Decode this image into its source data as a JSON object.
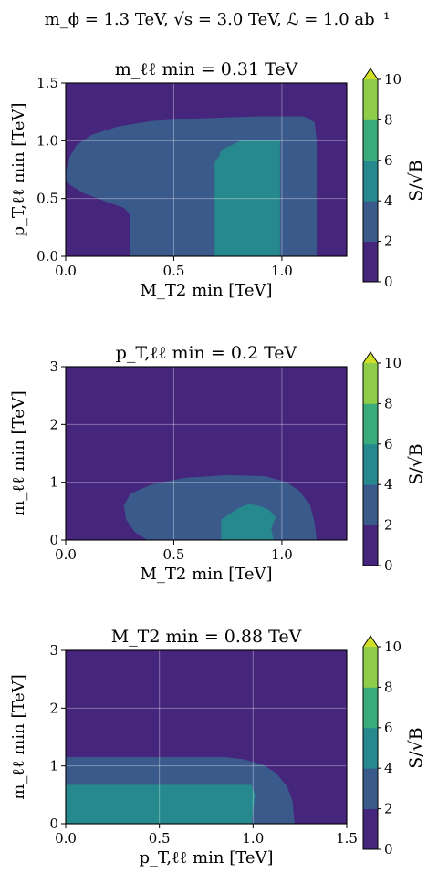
{
  "figure_title": "m_ϕ = 1.3 TeV, √s = 3.0 TeV, ℒ = 1.0 ab⁻¹",
  "colormap": {
    "levels": [
      0,
      2,
      4,
      6,
      8,
      10
    ],
    "colors": [
      "#46257c",
      "#3a5a8c",
      "#26898d",
      "#3aab7b",
      "#8fcc4a",
      "#d1de27"
    ],
    "extend": "max",
    "label": "S/√B"
  },
  "chart_data": [
    {
      "type": "heatmap",
      "title": "m_ℓℓ min = 0.31 TeV",
      "xlabel": "M_T2 min [TeV]",
      "ylabel": "p_T,ℓℓ min [TeV]",
      "xlim": [
        0,
        1.3
      ],
      "ylim": [
        0,
        1.5
      ],
      "xticks": [
        "0.0",
        "0.5",
        "1.0"
      ],
      "xtick_values": [
        0,
        0.5,
        1.0
      ],
      "yticks": [
        "0.0",
        "0.5",
        "1.0",
        "1.5"
      ],
      "ytick_values": [
        0,
        0.5,
        1.0,
        1.5
      ],
      "grid": true,
      "regions": [
        {
          "level": "2-4",
          "color": "#3a5a8c",
          "points": [
            [
              0,
              0.72
            ],
            [
              0.02,
              0.86
            ],
            [
              0.05,
              0.96
            ],
            [
              0.12,
              1.05
            ],
            [
              0.24,
              1.12
            ],
            [
              0.4,
              1.17
            ],
            [
              0.6,
              1.19
            ],
            [
              0.9,
              1.21
            ],
            [
              1.1,
              1.21
            ],
            [
              1.15,
              1.16
            ],
            [
              1.16,
              1.0
            ],
            [
              1.16,
              0
            ],
            [
              0.3,
              0
            ],
            [
              0.3,
              0.36
            ],
            [
              0.27,
              0.42
            ],
            [
              0.18,
              0.48
            ],
            [
              0.08,
              0.55
            ],
            [
              0.02,
              0.62
            ],
            [
              0,
              0.66
            ]
          ]
        },
        {
          "level": "4-6",
          "color": "#26898d",
          "points": [
            [
              0.69,
              0
            ],
            [
              0.99,
              0
            ],
            [
              0.99,
              1.0
            ],
            [
              0.82,
              1.01
            ],
            [
              0.78,
              0.97
            ],
            [
              0.72,
              0.92
            ],
            [
              0.71,
              0.86
            ],
            [
              0.69,
              0.82
            ]
          ]
        }
      ]
    },
    {
      "type": "heatmap",
      "title": "p_T,ℓℓ min = 0.2 TeV",
      "xlabel": "M_T2 min [TeV]",
      "ylabel": "m_ℓℓ min [TeV]",
      "xlim": [
        0,
        1.3
      ],
      "ylim": [
        0,
        3
      ],
      "xticks": [
        "0.0",
        "0.5",
        "1.0"
      ],
      "xtick_values": [
        0,
        0.5,
        1.0
      ],
      "yticks": [
        "0",
        "1",
        "2",
        "3"
      ],
      "ytick_values": [
        0,
        1,
        2,
        3
      ],
      "grid": true,
      "regions": [
        {
          "level": "2-4",
          "color": "#3a5a8c",
          "points": [
            [
              0.38,
              0
            ],
            [
              0.32,
              0.14
            ],
            [
              0.28,
              0.36
            ],
            [
              0.27,
              0.6
            ],
            [
              0.3,
              0.8
            ],
            [
              0.4,
              0.96
            ],
            [
              0.55,
              1.07
            ],
            [
              0.75,
              1.12
            ],
            [
              0.92,
              1.1
            ],
            [
              1.02,
              1.0
            ],
            [
              1.08,
              0.85
            ],
            [
              1.13,
              0.6
            ],
            [
              1.15,
              0.3
            ],
            [
              1.16,
              0
            ]
          ]
        },
        {
          "level": "4-6",
          "color": "#26898d",
          "points": [
            [
              0.72,
              0
            ],
            [
              0.72,
              0.35
            ],
            [
              0.76,
              0.45
            ],
            [
              0.8,
              0.55
            ],
            [
              0.85,
              0.62
            ],
            [
              0.9,
              0.58
            ],
            [
              0.94,
              0.52
            ],
            [
              0.97,
              0.4
            ],
            [
              0.95,
              0.2
            ],
            [
              0.96,
              0
            ]
          ]
        }
      ]
    },
    {
      "type": "heatmap",
      "title": "M_T2 min = 0.88 TeV",
      "xlabel": "p_T,ℓℓ min [TeV]",
      "ylabel": "m_ℓℓ min [TeV]",
      "xlim": [
        0,
        1.5
      ],
      "ylim": [
        0,
        3
      ],
      "xticks": [
        "0.0",
        "0.5",
        "1.0",
        "1.5"
      ],
      "xtick_values": [
        0,
        0.5,
        1.0,
        1.5
      ],
      "yticks": [
        "0",
        "1",
        "2",
        "3"
      ],
      "ytick_values": [
        0,
        1,
        2,
        3
      ],
      "grid": true,
      "regions": [
        {
          "level": "2-4",
          "color": "#3a5a8c",
          "points": [
            [
              0,
              0
            ],
            [
              0,
              1.15
            ],
            [
              0.85,
              1.15
            ],
            [
              0.95,
              1.11
            ],
            [
              1.05,
              1.02
            ],
            [
              1.12,
              0.88
            ],
            [
              1.18,
              0.65
            ],
            [
              1.21,
              0.38
            ],
            [
              1.22,
              0
            ]
          ]
        },
        {
          "level": "4-6",
          "color": "#26898d",
          "points": [
            [
              0,
              0
            ],
            [
              0,
              0.67
            ],
            [
              0.99,
              0.67
            ],
            [
              1.01,
              0.5
            ],
            [
              1.0,
              0.25
            ],
            [
              0.99,
              0
            ]
          ]
        }
      ]
    }
  ]
}
